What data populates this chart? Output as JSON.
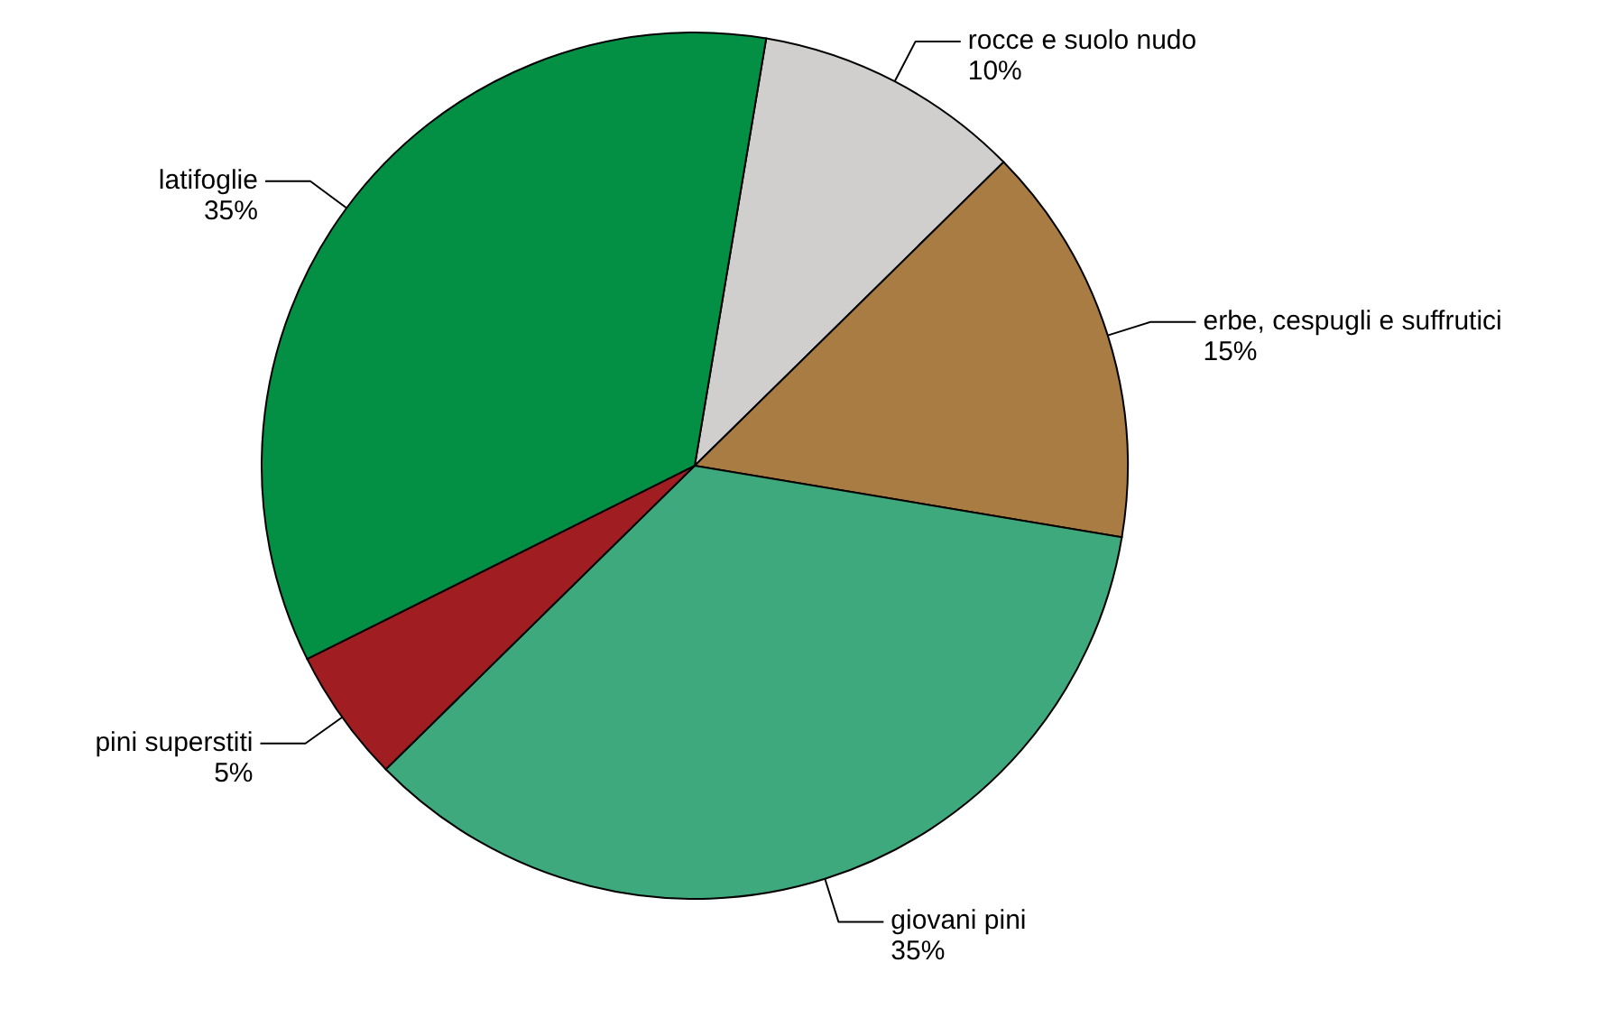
{
  "chart_data": {
    "type": "pie",
    "categories": [
      "rocce e suolo nudo",
      "erbe, cespugli e suffrutici",
      "giovani pini",
      "pini superstiti",
      "latifoglie"
    ],
    "values": [
      10,
      15,
      35,
      5,
      35
    ],
    "colors": [
      "#d0cfcd",
      "#a87c43",
      "#3fa97e",
      "#a01d22",
      "#039045"
    ],
    "value_labels": [
      "10%",
      "15%",
      "35%",
      "5%",
      "35%"
    ]
  }
}
